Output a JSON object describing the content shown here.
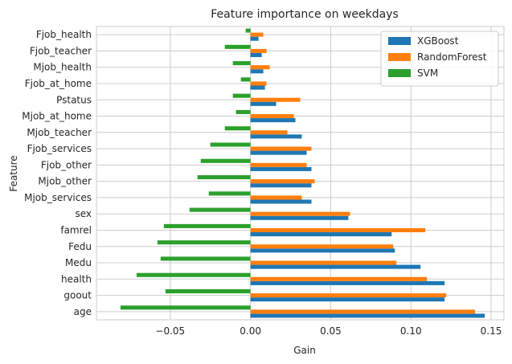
{
  "chart_data": {
    "type": "bar",
    "orientation": "horizontal",
    "title": "Feature importance on weekdays",
    "xlabel": "Gain",
    "ylabel": "Feature",
    "xlim": [
      -0.096,
      0.158
    ],
    "xticks": [
      -0.05,
      0.0,
      0.05,
      0.1,
      0.15
    ],
    "xtick_labels": [
      "−0.05",
      "0.00",
      "0.05",
      "0.10",
      "0.15"
    ],
    "grid": true,
    "legend_position": "top-right",
    "categories": [
      "age",
      "goout",
      "health",
      "Medu",
      "Fedu",
      "famrel",
      "sex",
      "Mjob_services",
      "Mjob_other",
      "Fjob_other",
      "Fjob_services",
      "Mjob_teacher",
      "Mjob_at_home",
      "Pstatus",
      "Fjob_at_home",
      "Mjob_health",
      "Fjob_teacher",
      "Fjob_health"
    ],
    "series": [
      {
        "name": "XGBoost",
        "color": "#1f77b4",
        "values": [
          0.146,
          0.121,
          0.121,
          0.106,
          0.09,
          0.088,
          0.061,
          0.038,
          0.038,
          0.038,
          0.035,
          0.032,
          0.028,
          0.016,
          0.009,
          0.008,
          0.007,
          0.005
        ]
      },
      {
        "name": "RandomForest",
        "color": "#ff7f0e",
        "values": [
          0.14,
          0.122,
          0.11,
          0.091,
          0.089,
          0.109,
          0.062,
          0.032,
          0.04,
          0.035,
          0.038,
          0.023,
          0.027,
          0.031,
          0.01,
          0.012,
          0.01,
          0.008
        ]
      },
      {
        "name": "SVM",
        "color": "#2ca02c",
        "values": [
          -0.081,
          -0.053,
          -0.071,
          -0.056,
          -0.058,
          -0.054,
          -0.038,
          -0.026,
          -0.033,
          -0.031,
          -0.025,
          -0.016,
          -0.009,
          -0.011,
          -0.006,
          -0.011,
          -0.016,
          -0.003
        ]
      }
    ]
  }
}
